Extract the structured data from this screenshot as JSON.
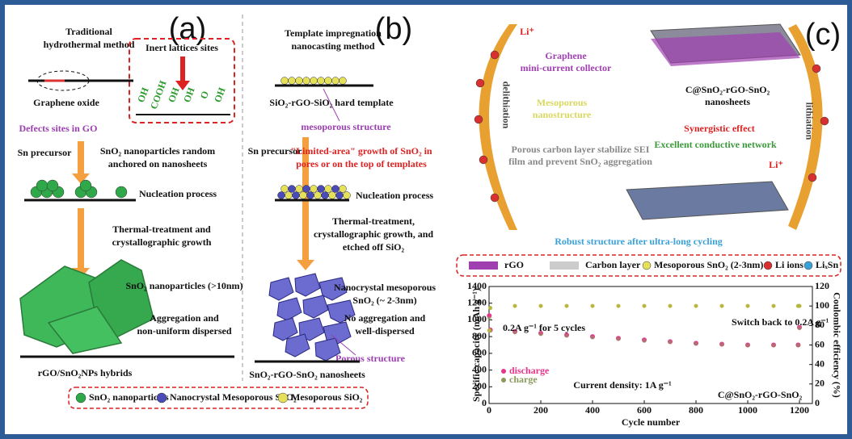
{
  "panel_a": {
    "label": "(a)",
    "title": [
      "Traditional",
      "hydrothermal method"
    ],
    "inert_label": "Inert lattices sites",
    "groups": [
      "OH",
      "COOH",
      "OH",
      "OH",
      "O",
      "OH"
    ],
    "graphene_oxide": "Graphene oxide",
    "defects": "Defects sites in GO",
    "precursor": "Sn precursor",
    "random": [
      "SnO₂ nanoparticles random",
      "anchored on nanosheets"
    ],
    "nucleation": "Nucleation process",
    "thermal": [
      "Thermal-treatment and",
      "crystallographic growth"
    ],
    "size": "SnO₂ nanoparticles (>10nm)",
    "aggregation": [
      "Aggregation and",
      "non-uniform dispersed"
    ],
    "product": "rGO/SnO₂NPs hybrids"
  },
  "panel_b": {
    "label": "(b)",
    "title": [
      "Template impregnation",
      "nanocasting method"
    ],
    "template": "SiO₂-rGO-SiO₂ hard template",
    "mesoporous": "mesoporous structure",
    "precursor": "Sn precursor",
    "limited": [
      "\"Limited-area\" growth of SnO₂ in",
      "pores or on the top of templates"
    ],
    "nucleation": "Nucleation process",
    "thermal": [
      "Thermal-treatment,",
      "crystallographic growth, and",
      "etched off SiO₂"
    ],
    "nanocrystal": [
      "Nanocrystal mesoporous",
      "SnO₂ (~ 2-3nm)"
    ],
    "no_aggregation": [
      "No aggregation and",
      "well-dispersed"
    ],
    "porous": "Porous structure",
    "product": "SnO₂-rGO-SnO₂ nanosheets"
  },
  "legend_ab": [
    "SnO₂ nanoparticles",
    "Nanocrystal Mesoporous SnO₂",
    "Mesoporous SiO₂"
  ],
  "panel_c": {
    "label": "(c)",
    "li_top": "Li⁺",
    "li_bottom": "Li⁺",
    "graphene": [
      "Graphene",
      "mini-current collector"
    ],
    "meso": [
      "Mesoporous",
      "nanostructure"
    ],
    "sheet": [
      "C@SnO₂-rGO-SnO₂",
      "nanosheets"
    ],
    "delithiation": "delithiation",
    "lithiation": "lithiation",
    "synergistic": "Synergistic effect",
    "network": "Excellent conductive network",
    "porous_carbon": [
      "Porous carbon layer  stabilize SEI",
      "film and prevent SnO₂ aggregation"
    ],
    "robust": "Robust structure after ultra-long cycling",
    "legend": [
      "rGO",
      "Carbon layer",
      "Mesoporous SnO₂ (2-3nm)",
      "Li ions",
      "LiₓSn"
    ],
    "chart": {
      "type": "scatter",
      "ylabel": "Specific capacity (mAh g⁻¹)",
      "y2label": "Coulombic efficiency (%)",
      "xlabel": "Cycle number",
      "annotations": [
        "0.2A g⁻¹ for 5 cycles",
        "Switch back to 0.2A g⁻¹",
        "Current density: 1A g⁻¹",
        "C@SnO₂-rGO-SnO₂"
      ],
      "x": [
        1,
        5,
        100,
        200,
        300,
        400,
        500,
        600,
        700,
        800,
        900,
        1000,
        1100,
        1195,
        1200
      ],
      "series": [
        {
          "name": "discharge",
          "color": "#e8348c",
          "values": [
            1050,
            880,
            860,
            840,
            820,
            800,
            780,
            760,
            740,
            720,
            710,
            700,
            700,
            700,
            910
          ]
        },
        {
          "name": "charge",
          "color": "#8a9a5b",
          "values": [
            1020,
            870,
            850,
            830,
            810,
            790,
            770,
            750,
            735,
            715,
            705,
            695,
            695,
            695,
            900
          ]
        },
        {
          "color": "#b5b83c",
          "axis": "y2",
          "values": [
            75,
            98,
            100,
            100,
            100,
            100,
            100,
            100,
            100,
            100,
            100,
            100,
            100,
            100,
            100
          ]
        }
      ],
      "xlim": [
        0,
        1250
      ],
      "xticks": [
        0,
        200,
        400,
        600,
        800,
        1000,
        1200
      ],
      "ylim": [
        0,
        1400
      ],
      "yticks": [
        0,
        200,
        400,
        600,
        800,
        1000,
        1200,
        1400
      ],
      "y2lim": [
        0,
        120
      ],
      "y2ticks": [
        0,
        20,
        40,
        60,
        80,
        100,
        120
      ]
    }
  }
}
